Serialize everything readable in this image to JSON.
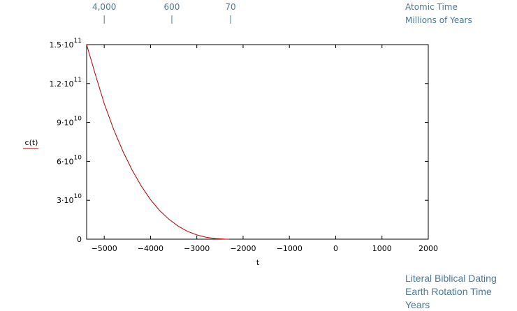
{
  "colors": {
    "curve": "#b00000",
    "annotation": "#4a7a99",
    "axis": "#000000"
  },
  "top_axis": {
    "labels": [
      {
        "text": "4,000",
        "at_t": -5000
      },
      {
        "text": "600",
        "at_t": -3540
      },
      {
        "text": "70",
        "at_t": -2270
      }
    ],
    "title_line1": "Atomic Time",
    "title_line2": "Millions of Years"
  },
  "bottom_info": {
    "line1": "Literal Biblical Dating",
    "line2": "Earth Rotation Time",
    "line3": "Years"
  },
  "chart_data": {
    "type": "line",
    "xlabel": "t",
    "ylabel": "c(t)",
    "xlim": [
      -5380,
      2000
    ],
    "ylim": [
      0,
      150000000000
    ],
    "x_ticks": [
      -5000,
      -4000,
      -3000,
      -2000,
      -1000,
      0,
      1000,
      2000
    ],
    "x_tick_labels": [
      "−5000",
      "−4000",
      "−3000",
      "−2000",
      "−1000",
      "0",
      "1000",
      "2000"
    ],
    "y_ticks": [
      {
        "value": 0,
        "mantissa": "0",
        "exponent": ""
      },
      {
        "value": 30000000000,
        "mantissa": "3·10",
        "exponent": "10"
      },
      {
        "value": 60000000000,
        "mantissa": "6·10",
        "exponent": "10"
      },
      {
        "value": 90000000000,
        "mantissa": "9·10",
        "exponent": "10"
      },
      {
        "value": 120000000000,
        "mantissa": "1.2·10",
        "exponent": "11"
      },
      {
        "value": 150000000000,
        "mantissa": "1.5·10",
        "exponent": "11"
      }
    ],
    "series": [
      {
        "name": "c(t)",
        "x": [
          -5380,
          -5200,
          -5000,
          -4800,
          -4600,
          -4400,
          -4200,
          -4000,
          -3800,
          -3600,
          -3400,
          -3200,
          -3000,
          -2800,
          -2600,
          -2400,
          -2300
        ],
        "y": [
          150000000000,
          128000000000,
          104500000000,
          85000000000,
          68000000000,
          53500000000,
          41000000000,
          30500000000,
          22000000000,
          15300000000,
          10000000000,
          6000000000,
          3300000000,
          1500000000,
          500000000,
          60000000,
          0
        ]
      }
    ]
  }
}
